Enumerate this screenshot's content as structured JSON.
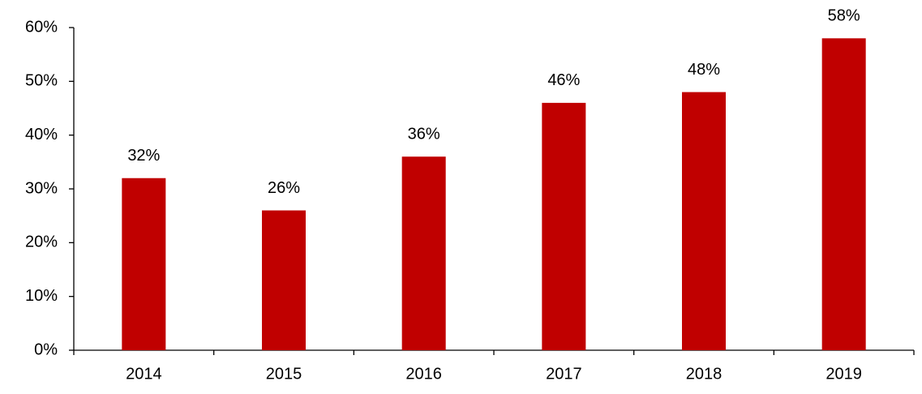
{
  "chart_data": {
    "type": "bar",
    "categories": [
      "2014",
      "2015",
      "2016",
      "2017",
      "2018",
      "2019"
    ],
    "values": [
      32,
      26,
      36,
      46,
      48,
      58
    ],
    "value_labels": [
      "32%",
      "26%",
      "36%",
      "46%",
      "48%",
      "58%"
    ],
    "color": "#c00000",
    "ylim": [
      0,
      60
    ],
    "yticks": [
      {
        "value": 0,
        "label": "0%"
      },
      {
        "value": 10,
        "label": "10%"
      },
      {
        "value": 20,
        "label": "20%"
      },
      {
        "value": 30,
        "label": "30%"
      },
      {
        "value": 40,
        "label": "40%"
      },
      {
        "value": 50,
        "label": "50%"
      },
      {
        "value": 60,
        "label": "60%"
      }
    ],
    "grid": false
  }
}
